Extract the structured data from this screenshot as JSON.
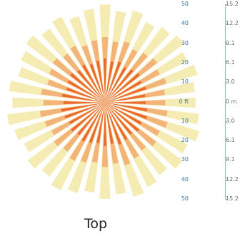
{
  "view": {
    "label": "Top"
  },
  "scale": {
    "feet_labels": [
      "50",
      "40",
      "30",
      "20",
      "10",
      "0 ft",
      "10",
      "20",
      "30",
      "40",
      "50"
    ],
    "meters_labels": [
      "15.2",
      "12.2",
      "9.1",
      "6.1",
      "3.0",
      "0 m",
      "3.0",
      "6.1",
      "9.1",
      "12.2",
      "15.2"
    ]
  },
  "colors": {
    "outer_rays": "#f3e9a6",
    "mid_rays": "#f2a266",
    "inner_rays": "#ea5a1f",
    "scale_feet": "#2b7bb6",
    "scale_meters": "#6b6b6b"
  },
  "burst": {
    "ray_count": 36
  }
}
